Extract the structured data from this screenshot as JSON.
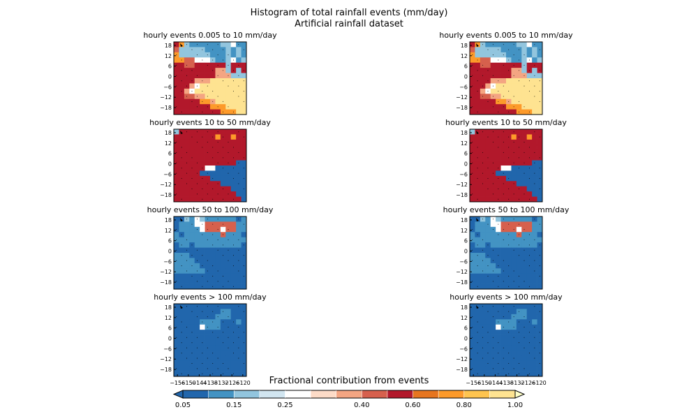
{
  "title": "Histogram of total rainfall events (mm/day)",
  "subtitle": "Artificial rainfall dataset",
  "chart_data": {
    "type": "heatmap",
    "panel_titles": [
      "hourly events 0.005 to 10 mm/day",
      "hourly events 10 to 50 mm/day",
      "hourly events 50 to 100 mm/day",
      "hourly events > 100 mm/day"
    ],
    "y_ticks": [
      "18",
      "12",
      "6",
      "0",
      "−6",
      "−12",
      "−18"
    ],
    "y_tick_values": [
      18,
      12,
      6,
      0,
      -6,
      -12,
      -18
    ],
    "ylim": [
      -22,
      20
    ],
    "x_ticks": [
      "−156",
      "−150",
      "−144",
      "−138",
      "−132",
      "−126",
      "−120"
    ],
    "x_tick_values": [
      -156,
      -150,
      -144,
      -138,
      -132,
      -126,
      -120
    ],
    "xlim": [
      -158,
      -118
    ],
    "grid": {
      "rows": 14,
      "cols": 14
    },
    "bin_values": [
      [
        "rrrrrrrrrrrrrr",
        "rrrrrrrrrrrrrr"
      ]
    ],
    "colorbar": {
      "label": "Fractional contribution from events",
      "tick_labels": [
        "0.05",
        "0.15",
        "0.25",
        "0.40",
        "0.60",
        "0.80",
        "1.00"
      ],
      "boundaries": [
        0.05,
        0.1,
        0.15,
        0.2,
        0.25,
        0.3,
        0.35,
        0.4,
        0.5,
        0.6,
        0.7,
        0.8,
        0.9,
        1.0
      ],
      "colors": [
        "#2166ac",
        "#4393c3",
        "#92c5de",
        "#d1e5f0",
        "#ffffff",
        "#fddbc7",
        "#f4a582",
        "#d6604d",
        "#b2182b",
        "#e6751f",
        "#fd9a2a",
        "#fec44f",
        "#fee391"
      ],
      "under_color": "#2166ac",
      "over_color": "#ffffc8"
    },
    "panels": [
      {
        "row": 0,
        "col": 0,
        "title_index": 0,
        "values": [
          "ro1aaaaaa11xaa",
          "p11111aaaa1a1a",
          "o111111aaa1a1a",
          "ooppxxx1aa1xa1",
          "rrpprrrrrr1rrr",
          "rrrrrrrrmm1r1r",
          "rrrrrrrrmmm111",
          "rrrrmmmyyyyyyy",
          "rrrmxyyyyyyyyy",
          "rrmxyyyyyyyyyy",
          "rrppmmyyyyyyyy",
          "rrrrroomyyyyyy",
          "rrrrrrroooyyyy",
          "rrrrrrrrroooyy"
        ]
      },
      {
        "row": 0,
        "col": 1,
        "title_index": 0,
        "values": [
          "ro1aaaaaa11xaa",
          "p11111aaaa1a1a",
          "o111111aaa1a1a",
          "ooppxxx1aa1xa1",
          "rrpprrrrrr1rrr",
          "rrrrrrrrmm1r1r",
          "rrrrrrrrmmm111",
          "rrrrmmmyyyyyyy",
          "rrrmxyyyyyyyyy",
          "rrmxyyyyyyyyyy",
          "rrppmmyyyyyyyy",
          "rrrrroomyyyyyy",
          "rrrrrrroooyyyy",
          "rrrrrrrrroooyy"
        ]
      },
      {
        "row": 1,
        "col": 0,
        "title_index": 1,
        "values": [
          "1rrrrrrrrrrrrr",
          "rrrrrrrrorrorr",
          "rrrrrrrrrrrrrr",
          "rrrrrrrrrrrrrr",
          "rrrrrrrrrrrrrr",
          "rrrrrrrrrrrrrr",
          "rrrrrrrrrrrrbb",
          "rrrrrrxxbbbbbb",
          "rrrrrbbbbbbbbb",
          "rrrrrrrbbbbbbb",
          "rrrrrrrrrbbbbb",
          "rrrrrrrrrrrbbb",
          "rrrrrrrrrrrrbb",
          "rrrrrrrrrrrrrb"
        ]
      },
      {
        "row": 1,
        "col": 1,
        "title_index": 1,
        "values": [
          "1rrrrrrrrrrrrr",
          "rrrrrrrrorrorr",
          "rrrrrrrrrrrrrr",
          "rrrrrrrrrrrrrr",
          "rrrrrrrrrrrrrr",
          "rrrrrrrrrrrrrr",
          "rrrrrrrrrrrrbb",
          "rrrrrrxxbbbbbb",
          "rrrrrbbbbbbbbb",
          "rrrrrrrbbbbbbb",
          "rrrrrrrrrbbbbb",
          "rrrrrrrrrrrbbb",
          "rrrrrrrrrrrrbb",
          "rrrrrrrrrrrrrb"
        ]
      },
      {
        "row": 2,
        "col": 0,
        "title_index": 2,
        "values": [
          "bb1ax1aaaaaaba",
          "baaaxxppppppaa",
          "baaaaxpppxppaa",
          "abaaaaaaapaaab",
          "aaaaaaaaaaaaaa",
          "baabaaaaaaaaab",
          "bbbbbbbbbbbbbb",
          "aaabbbbbbbbbbb",
          "aaaabbbbbbbbbb",
          "aaaaabbbbbbbbb",
          "aaaaaabbbbbbbb",
          "bbbbbbbbbbbbbb",
          "bbbbbbbbbbbbbb",
          "bbbbbbbbbbbbbb"
        ]
      },
      {
        "row": 2,
        "col": 1,
        "title_index": 2,
        "values": [
          "bb1ax1aaaaaaba",
          "baaaxxppppppaa",
          "baaaaxpppxppaa",
          "abaaaaaaapaaab",
          "aaaaaaaaaaaaaa",
          "baabaaaaaaaaab",
          "bbbbbbbbbbbbbb",
          "aaabbbbbbbbbbb",
          "aaaabbbbbbbbbb",
          "aaaaabbbbbbbbb",
          "aaaaaabbbbbbbb",
          "bbbbbbbbbbbbbb",
          "bbbbbbbbbbbbbb",
          "bbbbbbbbbbbbbb"
        ]
      },
      {
        "row": 3,
        "col": 0,
        "title_index": 3,
        "values": [
          "bbbbbbbbbbbbbb",
          "bbbbbbbbbaabbb",
          "bbbbbbbbaaabbb",
          "bbbbbaaaabbbab",
          "bbbbbxaaabbbbb",
          "bbbbbbbbbbbbbb",
          "bbbbbbbbbbbbbb",
          "bbbbbbbbbbbbbb",
          "bbbbbbbbbbbbbb",
          "bbbbbbbbbbbbbb",
          "bbbbbbbbbbbbbb",
          "bbbbbbbbbbbbbb",
          "bbbbbbbbbbbbbb",
          "bbbbbbbbbbbbbb"
        ]
      },
      {
        "row": 3,
        "col": 1,
        "title_index": 3,
        "values": [
          "bbbbbbbbbbbbbb",
          "bbbbbbbbbaabbb",
          "bbbbbbbbaaabbb",
          "bbbbbaaaabbbab",
          "bbbbbxaaabbbbb",
          "bbbbbbbbbbbbbb",
          "bbbbbbbbbbbbbb",
          "bbbbbbbbbbbbbb",
          "bbbbbbbbbbbbbb",
          "bbbbbbbbbbbbbb",
          "bbbbbbbbbbbbbb",
          "bbbbbbbbbbbbbb",
          "bbbbbbbbbbbbbb",
          "bbbbbbbbbbbbbb"
        ]
      }
    ],
    "value_codes": {
      "b": 0.07,
      "a": 0.12,
      "1": 0.17,
      "x": 0.27,
      "p": 0.45,
      "m": 0.38,
      "r": 0.55,
      "o": 0.75,
      "y": 0.95
    }
  }
}
